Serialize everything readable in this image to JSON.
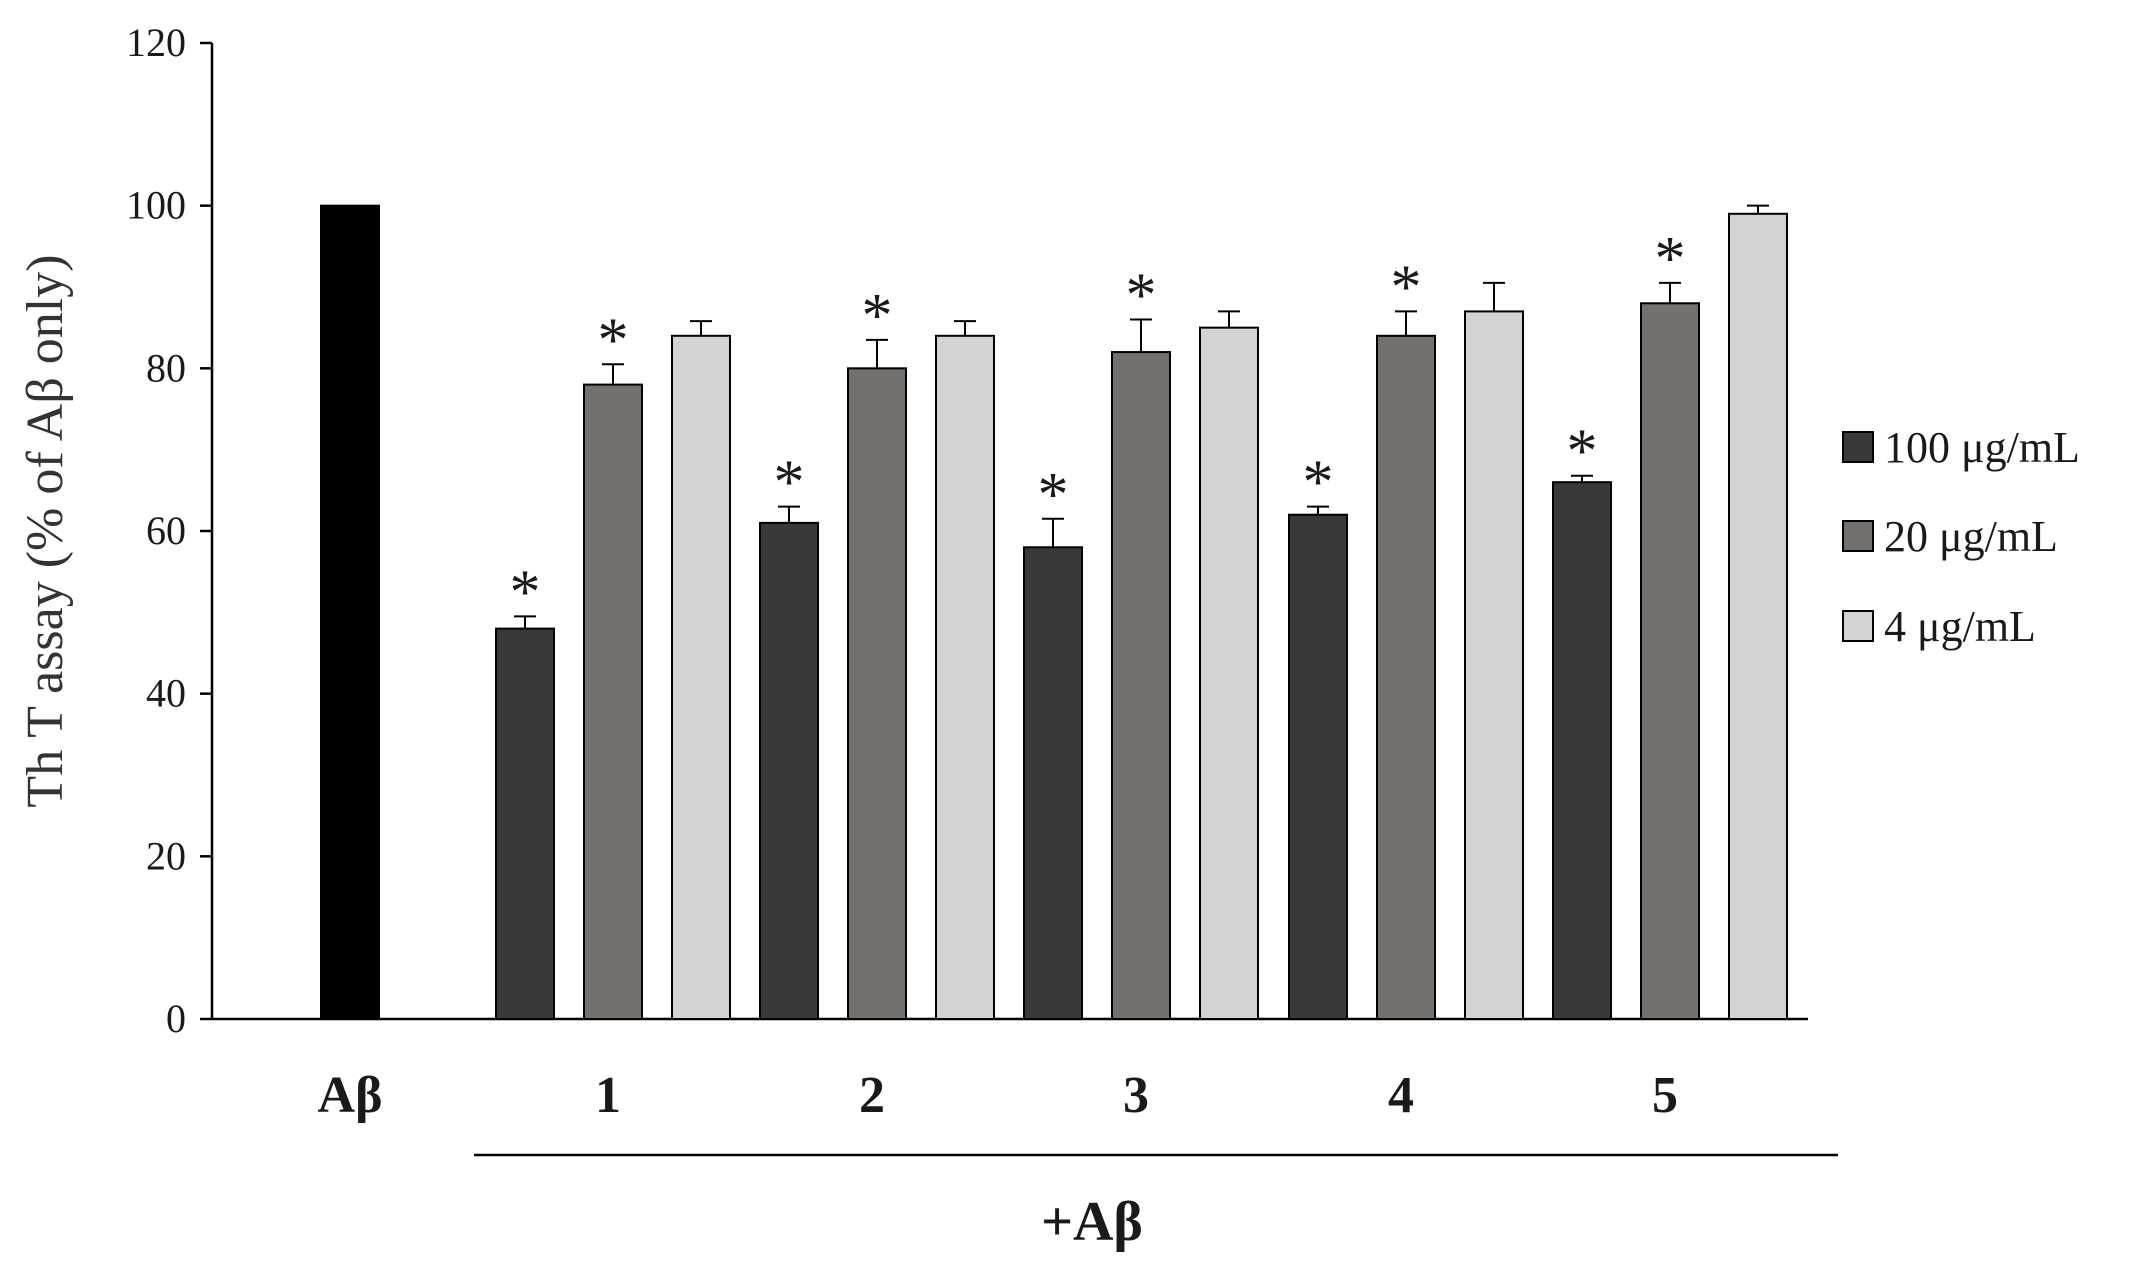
{
  "chart_data": {
    "type": "bar",
    "title": "",
    "ylabel": "Th T assay (% of Aβ only)",
    "xlabel": "",
    "ylim": [
      0,
      120
    ],
    "yticks": [
      0,
      20,
      40,
      60,
      80,
      100,
      120
    ],
    "grid": false,
    "legend_position": "right",
    "control": {
      "category": "Aβ",
      "value": 100,
      "color": "#000000"
    },
    "categories": [
      "1",
      "2",
      "3",
      "4",
      "5"
    ],
    "group_label": "+Aβ",
    "series": [
      {
        "name": "100 μg/mL",
        "color": "#3a3937",
        "values": [
          48,
          61,
          58,
          62,
          66
        ],
        "errors": [
          1.5,
          2,
          3.5,
          1,
          0.8
        ],
        "significant": [
          true,
          true,
          true,
          true,
          true
        ]
      },
      {
        "name": "20 μg/mL",
        "color": "#73706e",
        "values": [
          78,
          80,
          82,
          84,
          88
        ],
        "errors": [
          2.5,
          3.5,
          4,
          3,
          2.5
        ],
        "significant": [
          true,
          true,
          true,
          true,
          true
        ]
      },
      {
        "name": "4 μg/mL",
        "color": "#d3d3d3",
        "values": [
          84,
          84,
          85,
          87,
          99
        ],
        "errors": [
          1.8,
          1.8,
          2,
          3.5,
          1
        ],
        "significant": [
          false,
          false,
          false,
          false,
          false
        ]
      }
    ],
    "significance_marker": "*"
  }
}
